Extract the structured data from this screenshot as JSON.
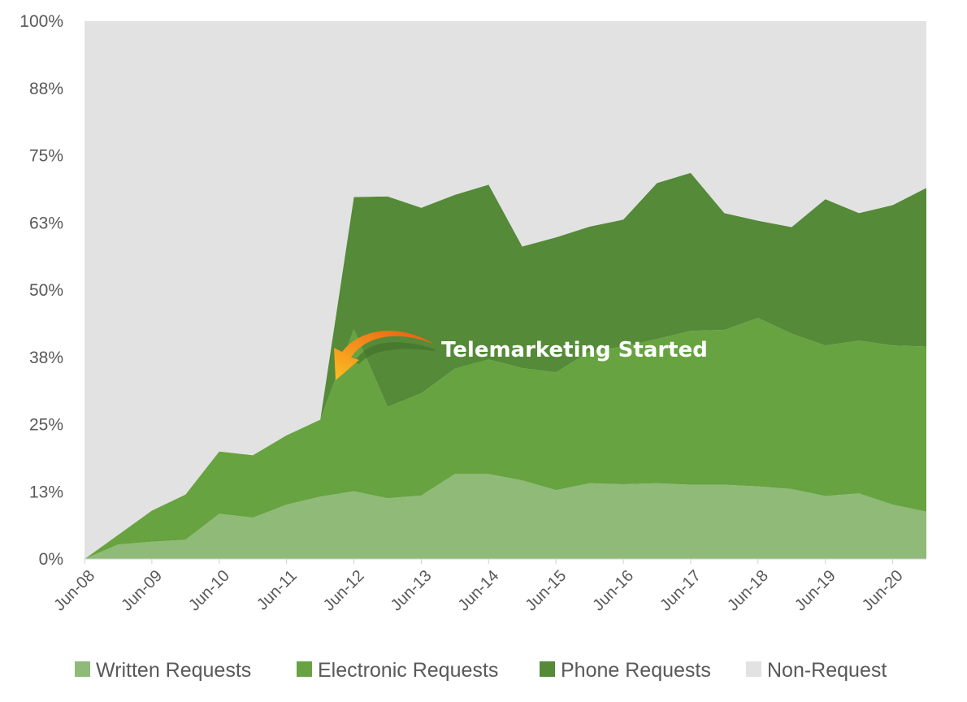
{
  "chart_data": {
    "type": "area",
    "stacked": "percent",
    "x": [
      "Jun-08",
      "Dec-08",
      "Jun-09",
      "Dec-09",
      "Jun-10",
      "Dec-10",
      "Jun-11",
      "Dec-11",
      "Jun-12",
      "Dec-12",
      "Jun-13",
      "Dec-13",
      "Jun-14",
      "Dec-14",
      "Jun-15",
      "Dec-15",
      "Jun-16",
      "Dec-16",
      "Jun-17",
      "Dec-17",
      "Jun-18",
      "Dec-18",
      "Jun-19",
      "Dec-19",
      "Jun-20",
      "Dec-20"
    ],
    "x_tick_labels": [
      "Jun-08",
      "Jun-09",
      "Jun-10",
      "Jun-11",
      "Jun-12",
      "Jun-13",
      "Jun-14",
      "Jun-15",
      "Jun-16",
      "Jun-17",
      "Jun-18",
      "Jun-19",
      "Jun-20"
    ],
    "y_tick_labels": [
      "0%",
      "13%",
      "25%",
      "38%",
      "50%",
      "63%",
      "75%",
      "88%",
      "100%"
    ],
    "ylim": [
      0,
      100
    ],
    "series": [
      {
        "name": "Written Requests",
        "color": "#8fba78",
        "values": [
          0,
          2.7,
          3.2,
          3.6,
          8.4,
          7.7,
          10.1,
          11.6,
          12.6,
          11.3,
          11.8,
          15.8,
          15.8,
          14.6,
          12.8,
          14.1,
          13.9,
          14.1,
          13.8,
          13.8,
          13.5,
          13.0,
          11.7,
          12.2,
          10.1,
          8.8
        ]
      },
      {
        "name": "Electronic Requests",
        "color": "#67a340",
        "values": [
          0,
          1.8,
          5.8,
          8.4,
          11.6,
          11.6,
          12.9,
          14.3,
          30.1,
          17.0,
          19.0,
          19.6,
          21.3,
          20.9,
          21.9,
          24.5,
          25.6,
          26.8,
          28.6,
          28.8,
          31.3,
          28.9,
          28.0,
          28.4,
          29.6,
          30.7
        ]
      },
      {
        "name": "Phone Requests",
        "color": "#548a38",
        "values": [
          0,
          0,
          0,
          0,
          0,
          0,
          0,
          0,
          24.6,
          39.1,
          34.5,
          32.3,
          32.5,
          22.6,
          25.1,
          23.2,
          23.6,
          29.0,
          29.4,
          21.7,
          18.1,
          19.8,
          27.2,
          23.7,
          26.1,
          29.5
        ]
      },
      {
        "name": "Non-Request",
        "color": "#e2e2e2",
        "values": [
          100,
          95.5,
          91.0,
          88.0,
          80.0,
          80.7,
          77.0,
          74.1,
          32.7,
          32.6,
          34.7,
          32.3,
          30.4,
          41.9,
          40.2,
          38.2,
          36.9,
          30.1,
          28.2,
          35.7,
          37.1,
          38.3,
          33.1,
          35.7,
          34.2,
          31.0
        ]
      }
    ],
    "annotation": {
      "text": "Telemarketing Started",
      "points_to": "Jun-12"
    },
    "legend_position": "bottom",
    "grid": false
  }
}
